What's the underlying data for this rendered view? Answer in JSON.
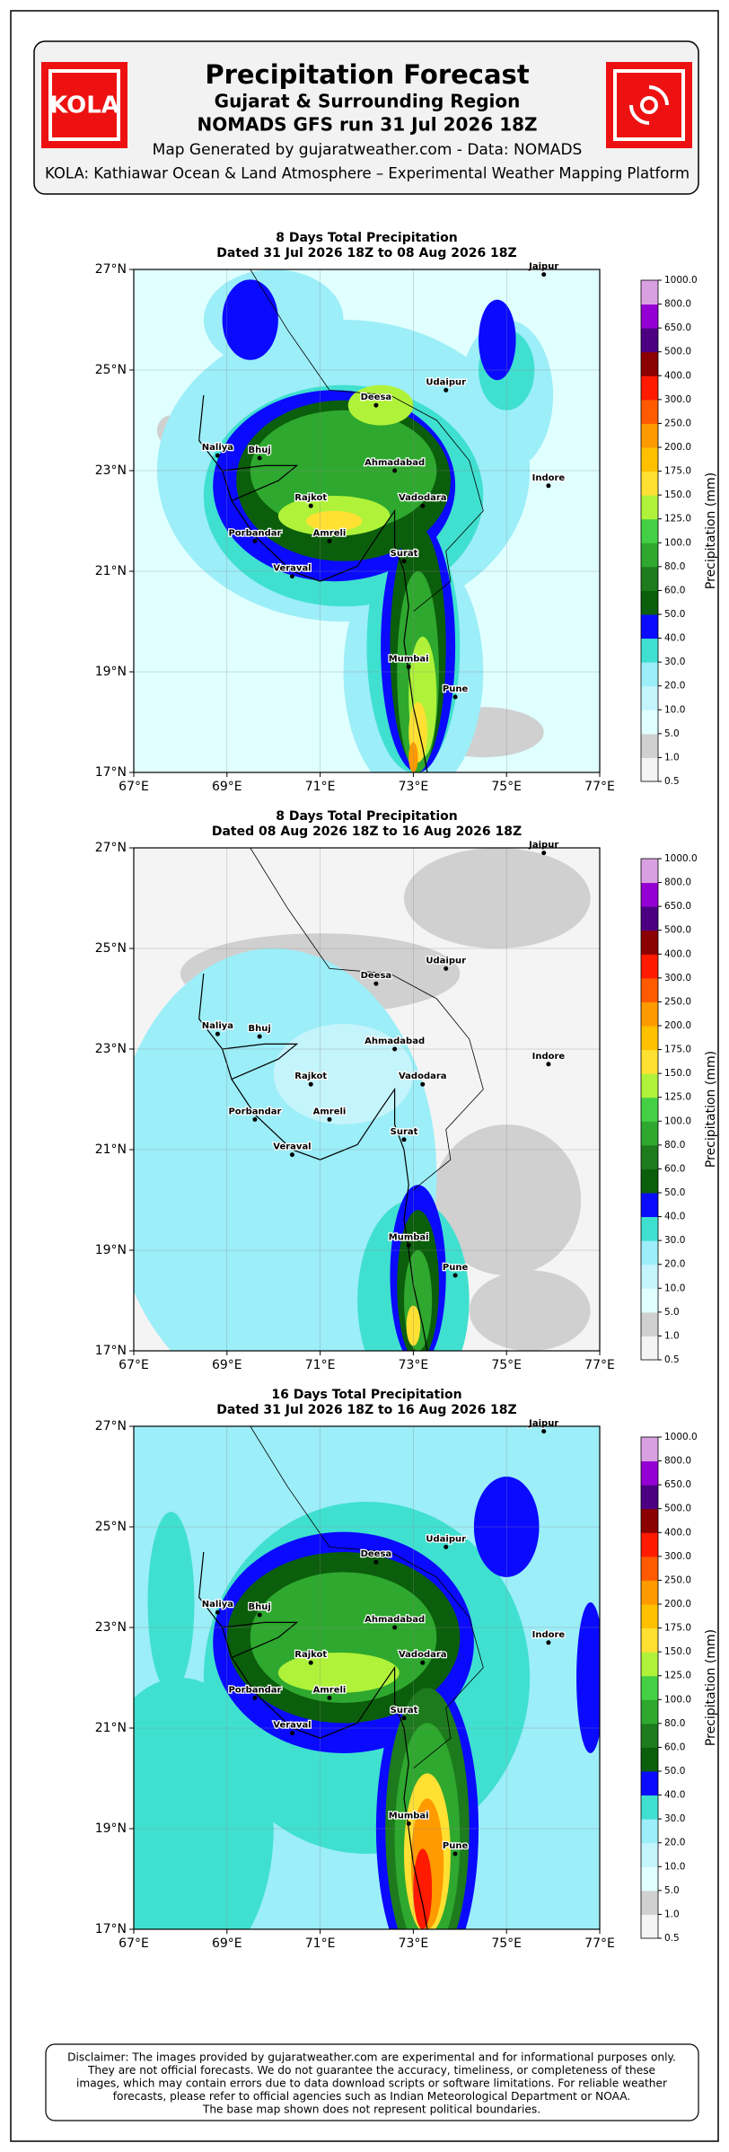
{
  "header": {
    "logo_left": "KOLA",
    "title": "Precipitation Forecast",
    "subtitle": "Gujarat & Surrounding Region",
    "run": "NOMADS GFS run 31 Jul 2026 18Z",
    "generated": "Map Generated by gujaratweather.com - Data: NOMADS",
    "platform": "KOLA: Kathiawar Ocean & Land Atmosphere – Experimental Weather Mapping Platform"
  },
  "maps": [
    {
      "title": "8 Days Total Precipitation",
      "dated": "Dated 31 Jul 2026 18Z to 08 Aug 2026 18Z"
    },
    {
      "title": "8 Days Total Precipitation",
      "dated": "Dated 08 Aug 2026 18Z to 16 Aug 2026 18Z"
    },
    {
      "title": "16 Days Total Precipitation",
      "dated": "Dated 31 Jul 2026 18Z to 16 Aug 2026 18Z"
    }
  ],
  "lon_labels": [
    "67°E",
    "69°E",
    "71°E",
    "73°E",
    "75°E",
    "77°E"
  ],
  "lat_labels": [
    "27°N",
    "25°N",
    "23°N",
    "21°N",
    "19°N",
    "17°N"
  ],
  "cities": [
    "Jaipur",
    "Deesa",
    "Udaipur",
    "Naliya",
    "Bhuj",
    "Ahmadabad",
    "Indore",
    "Rajkot",
    "Vadodara",
    "Porbandar",
    "Amreli",
    "Surat",
    "Veraval",
    "Mumbai",
    "Pune"
  ],
  "colorbar": {
    "label": "Precipitation (mm)",
    "levels": [
      "0.5",
      "1.0",
      "5.0",
      "10.0",
      "20.0",
      "30.0",
      "40.0",
      "50.0",
      "60.0",
      "80.0",
      "100.0",
      "125.0",
      "150.0",
      "175.0",
      "200.0",
      "250.0",
      "300.0",
      "400.0",
      "500.0",
      "650.0",
      "800.0",
      "1000.0"
    ],
    "colors": [
      "#f4f4f4",
      "#d0d0d0",
      "#e0ffff",
      "#c4f4fc",
      "#9ceef8",
      "#40e0d0",
      "#0a0aff",
      "#0b5e0b",
      "#1d7a1d",
      "#2ea82e",
      "#44d044",
      "#b0f23a",
      "#ffe033",
      "#ffc000",
      "#ff9a00",
      "#ff5a00",
      "#ff1a00",
      "#8b0000",
      "#4b0082",
      "#9400d3",
      "#d8a0e0"
    ]
  },
  "disclaimer": [
    "Disclaimer: The images provided by gujaratweather.com are experimental and for informational purposes only.",
    "They are not official forecasts. We do not guarantee the accuracy, timeliness, or completeness of these",
    "images, which may contain errors due to data download scripts or software limitations. For reliable weather",
    "forecasts, please refer to official agencies such as Indian Meteorological Department or NOAA.",
    "The base map shown does not represent political boundaries."
  ]
}
